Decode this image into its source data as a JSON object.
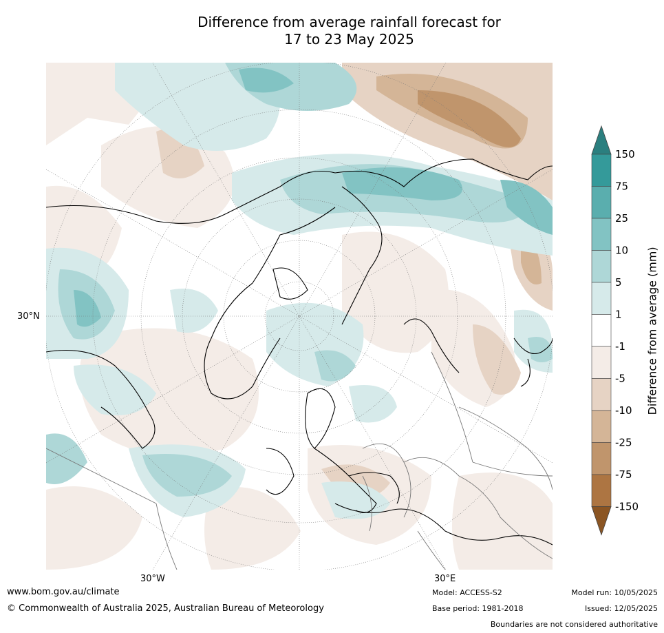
{
  "title_line1": "Difference from average rainfall forecast for",
  "title_line2": "17 to 23 May 2025",
  "map": {
    "lat_label": "30°N",
    "lon_labels": [
      "30°W",
      "30°E"
    ]
  },
  "colorbar": {
    "label": "Difference from average (mm)",
    "ticks": [
      "150",
      "75",
      "25",
      "10",
      "5",
      "1",
      "-1",
      "-5",
      "-10",
      "-25",
      "-75",
      "-150"
    ],
    "colors": [
      "#2b7f7f",
      "#349a9a",
      "#5aaeae",
      "#82c3c3",
      "#aed7d7",
      "#d6eaea",
      "#ffffff",
      "#f4ece7",
      "#e6d3c4",
      "#d4b597",
      "#c0956c",
      "#ad7542",
      "#8b5523"
    ]
  },
  "footer": {
    "website": "www.bom.gov.au/climate",
    "copyright": "© Commonwealth of Australia 2025, Australian Bureau of Meteorology",
    "model": "Model: ACCESS-S2",
    "base_period": "Base period: 1981-2018",
    "model_run": "Model run: 10/05/2025",
    "issued": "Issued: 12/05/2025",
    "disclaimer": "Boundaries are not considered authoritative"
  }
}
